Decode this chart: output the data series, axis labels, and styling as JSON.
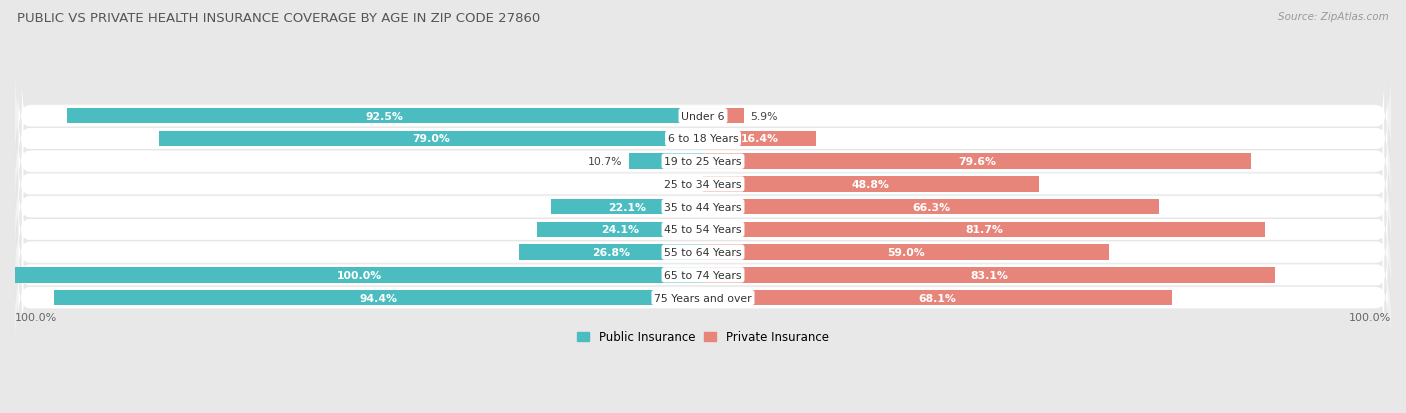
{
  "title": "PUBLIC VS PRIVATE HEALTH INSURANCE COVERAGE BY AGE IN ZIP CODE 27860",
  "source": "Source: ZipAtlas.com",
  "categories": [
    "Under 6",
    "6 to 18 Years",
    "19 to 25 Years",
    "25 to 34 Years",
    "35 to 44 Years",
    "45 to 54 Years",
    "55 to 64 Years",
    "65 to 74 Years",
    "75 Years and over"
  ],
  "public_values": [
    92.5,
    79.0,
    10.7,
    0.0,
    22.1,
    24.1,
    26.8,
    100.0,
    94.4
  ],
  "private_values": [
    5.9,
    16.4,
    79.6,
    48.8,
    66.3,
    81.7,
    59.0,
    83.1,
    68.1
  ],
  "public_color": "#4BBDC0",
  "private_color": "#E8857A",
  "bg_color": "#e8e8e8",
  "row_colors": [
    "#f2f2f2",
    "#e6e6e6"
  ],
  "title_color": "#555555",
  "source_color": "#999999",
  "axis_label": "100.0%",
  "legend_public": "Public Insurance",
  "legend_private": "Private Insurance",
  "max_value": 100.0,
  "white_text_threshold": 12.0
}
